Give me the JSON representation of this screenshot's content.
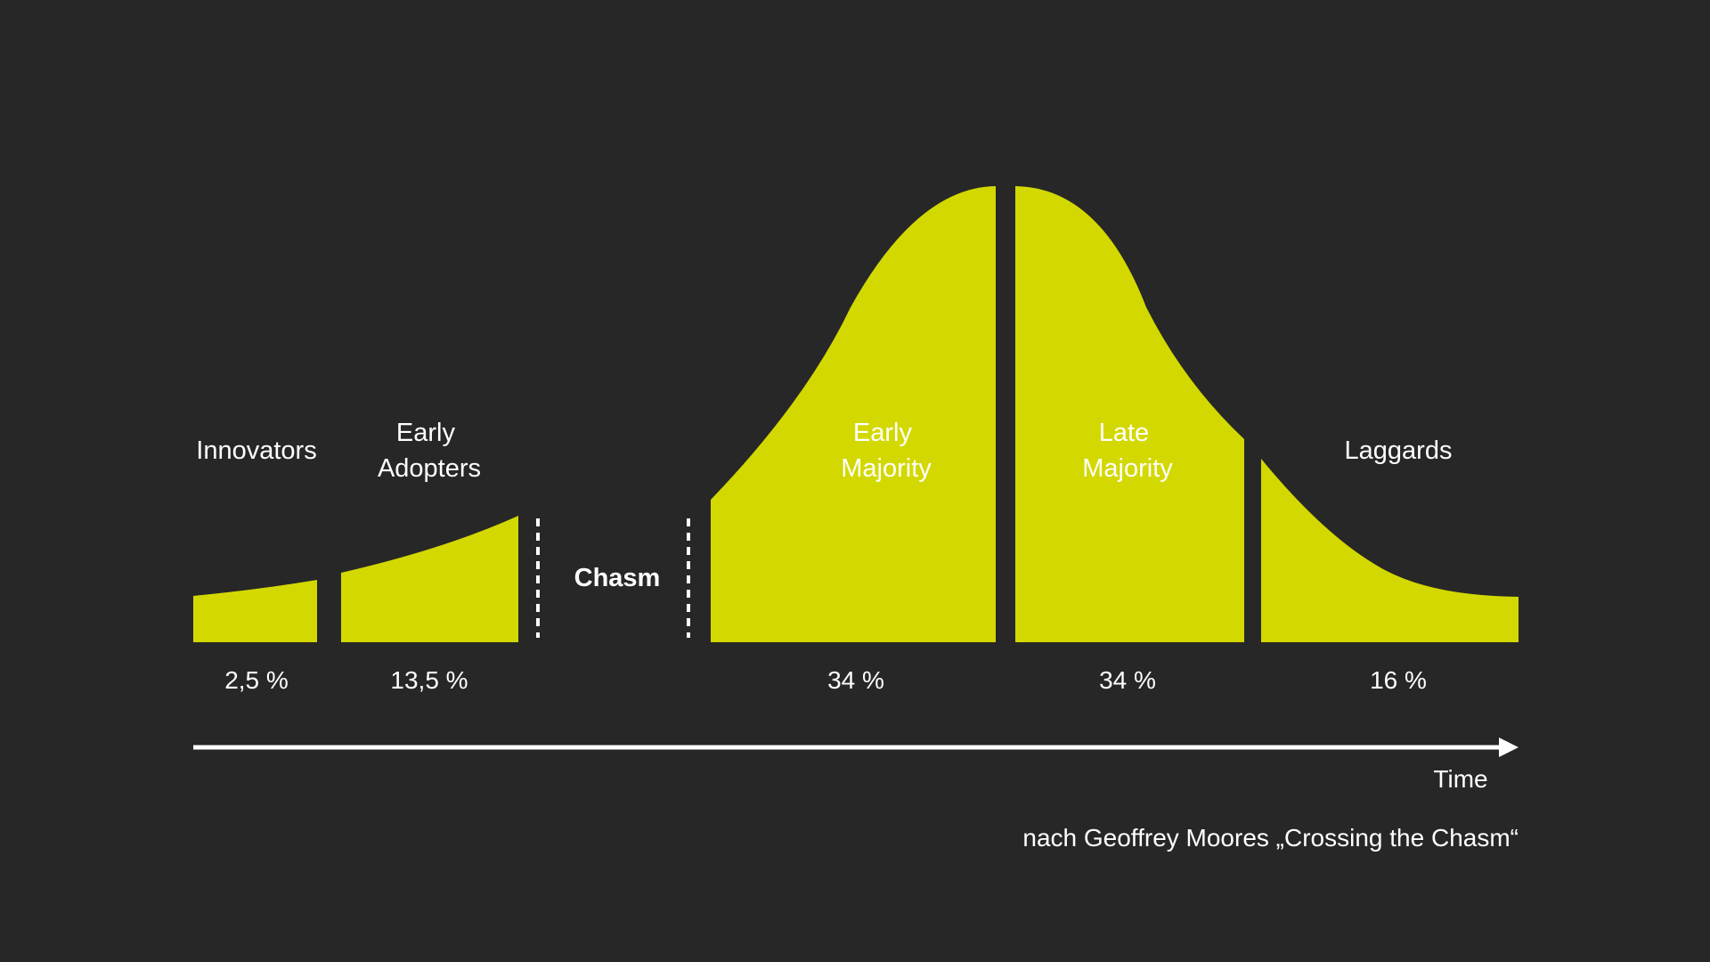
{
  "colors": {
    "background": "#272727",
    "segment": "#d3d800",
    "text": "#ffffff",
    "credit": "#c7cc10"
  },
  "segments": [
    {
      "id": "innovators",
      "label_lines": [
        "Innovators"
      ],
      "percent": "2,5 %"
    },
    {
      "id": "early-adopters",
      "label_lines": [
        "Early",
        "Adopters"
      ],
      "percent": "13,5 %"
    },
    {
      "id": "early-majority",
      "label_lines": [
        "Early",
        "Majority"
      ],
      "percent": "34 %"
    },
    {
      "id": "late-majority",
      "label_lines": [
        "Late",
        "Majority"
      ],
      "percent": "34 %"
    },
    {
      "id": "laggards",
      "label_lines": [
        "Laggards"
      ],
      "percent": "16 %"
    }
  ],
  "chasm_label": "Chasm",
  "axis_label": "Time",
  "credit": "nach Geoffrey Moores „Crossing the Chasm“"
}
